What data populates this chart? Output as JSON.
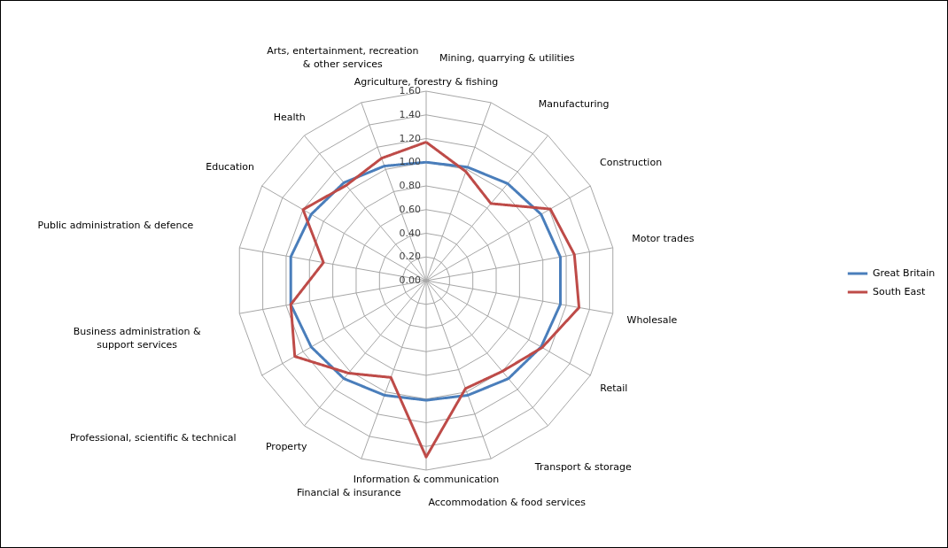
{
  "chart_data": {
    "type": "radar",
    "categories": [
      "Agriculture, forestry & fishing",
      "Mining, quarrying & utilities",
      "Manufacturing",
      "Construction",
      "Motor trades",
      "Wholesale",
      "Retail",
      "Transport & storage",
      "Accommodation & food services",
      "Information & communication",
      "Financial & insurance",
      "Property",
      "Professional, scientific & technical",
      "Business administration  & support services",
      "Public administration  & defence",
      "Education",
      "Health",
      "Arts, entertainment,  recreation & other services"
    ],
    "series": [
      {
        "name": "Great Britain",
        "color": "#4a7ebb",
        "values": [
          1.0,
          1.02,
          1.07,
          1.12,
          1.15,
          1.15,
          1.12,
          1.08,
          1.03,
          1.01,
          1.03,
          1.08,
          1.12,
          1.16,
          1.16,
          1.12,
          1.08,
          1.03
        ]
      },
      {
        "name": "South East",
        "color": "#be4b48",
        "values": [
          1.17,
          0.98,
          0.85,
          1.21,
          1.27,
          1.31,
          1.13,
          1.0,
          0.97,
          1.49,
          0.87,
          1.02,
          1.28,
          1.16,
          0.88,
          1.2,
          1.05,
          1.1
        ]
      }
    ],
    "ylim": [
      0,
      1.6
    ],
    "yticks": [
      {
        "value": 0,
        "label": "0.00"
      },
      {
        "value": 0.2,
        "label": "0.20"
      },
      {
        "value": 0.4,
        "label": "0.40"
      },
      {
        "value": 0.6,
        "label": "0.60"
      },
      {
        "value": 0.8,
        "label": "0.80"
      },
      {
        "value": 1.0,
        "label": "1.00"
      },
      {
        "value": 1.2,
        "label": "1.20"
      },
      {
        "value": 1.4,
        "label": "1.40"
      },
      {
        "value": 1.6,
        "label": "1.60"
      }
    ],
    "grid": true,
    "legend": "right",
    "marker": "none",
    "line_style": "solid"
  }
}
